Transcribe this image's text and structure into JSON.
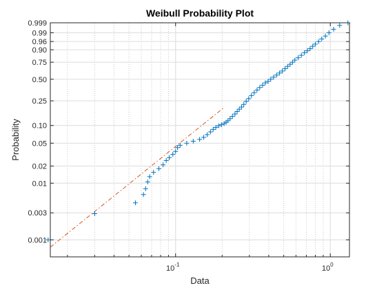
{
  "chart_data": {
    "type": "scatter",
    "title": "Weibull Probability Plot",
    "xlabel": "Data",
    "ylabel": "Probability",
    "x_scale": "log",
    "y_scale": "weibull",
    "xlim": [
      0.0155,
      1.33
    ],
    "ylim": [
      0.0005,
      0.999
    ],
    "x_major_ticks": [
      {
        "value": 0.1,
        "base": "10",
        "exp": "-1"
      },
      {
        "value": 1,
        "base": "10",
        "exp": "0"
      }
    ],
    "y_ticks": [
      {
        "value": 0.001,
        "label": "0.001"
      },
      {
        "value": 0.003,
        "label": "0.003"
      },
      {
        "value": 0.01,
        "label": "0.01"
      },
      {
        "value": 0.02,
        "label": "0.02"
      },
      {
        "value": 0.05,
        "label": "0.05"
      },
      {
        "value": 0.1,
        "label": "0.10"
      },
      {
        "value": 0.25,
        "label": "0.25"
      },
      {
        "value": 0.5,
        "label": "0.50"
      },
      {
        "value": 0.75,
        "label": "0.75"
      },
      {
        "value": 0.9,
        "label": "0.90"
      },
      {
        "value": 0.96,
        "label": "0.96"
      },
      {
        "value": 0.99,
        "label": "0.99"
      },
      {
        "value": 0.999,
        "label": "0.999"
      }
    ],
    "grid": true,
    "series": [
      {
        "marker": "+",
        "color": "#0072BD",
        "points": [
          [
            0.015,
            0.001
          ],
          [
            0.03,
            0.0029
          ],
          [
            0.055,
            0.0045
          ],
          [
            0.062,
            0.0063
          ],
          [
            0.064,
            0.008
          ],
          [
            0.066,
            0.0105
          ],
          [
            0.068,
            0.013
          ],
          [
            0.072,
            0.0155
          ],
          [
            0.078,
            0.018
          ],
          [
            0.083,
            0.021
          ],
          [
            0.087,
            0.025
          ],
          [
            0.091,
            0.028
          ],
          [
            0.096,
            0.032
          ],
          [
            0.1,
            0.036
          ],
          [
            0.103,
            0.042
          ],
          [
            0.107,
            0.046
          ],
          [
            0.118,
            0.05
          ],
          [
            0.13,
            0.054
          ],
          [
            0.143,
            0.058
          ],
          [
            0.152,
            0.063
          ],
          [
            0.16,
            0.07
          ],
          [
            0.168,
            0.078
          ],
          [
            0.175,
            0.086
          ],
          [
            0.182,
            0.093
          ],
          [
            0.19,
            0.099
          ],
          [
            0.198,
            0.103
          ],
          [
            0.206,
            0.108
          ],
          [
            0.212,
            0.113
          ],
          [
            0.218,
            0.12
          ],
          [
            0.225,
            0.13
          ],
          [
            0.233,
            0.142
          ],
          [
            0.242,
            0.155
          ],
          [
            0.25,
            0.17
          ],
          [
            0.258,
            0.185
          ],
          [
            0.267,
            0.2
          ],
          [
            0.276,
            0.22
          ],
          [
            0.286,
            0.245
          ],
          [
            0.297,
            0.27
          ],
          [
            0.309,
            0.3
          ],
          [
            0.322,
            0.33
          ],
          [
            0.336,
            0.36
          ],
          [
            0.35,
            0.39
          ],
          [
            0.365,
            0.42
          ],
          [
            0.38,
            0.45
          ],
          [
            0.396,
            0.47
          ],
          [
            0.412,
            0.5
          ],
          [
            0.43,
            0.53
          ],
          [
            0.45,
            0.56
          ],
          [
            0.47,
            0.59
          ],
          [
            0.49,
            0.62
          ],
          [
            0.51,
            0.655
          ],
          [
            0.53,
            0.69
          ],
          [
            0.55,
            0.72
          ],
          [
            0.57,
            0.75
          ],
          [
            0.59,
            0.78
          ],
          [
            0.62,
            0.81
          ],
          [
            0.65,
            0.84
          ],
          [
            0.68,
            0.87
          ],
          [
            0.71,
            0.89
          ],
          [
            0.74,
            0.91
          ],
          [
            0.77,
            0.93
          ],
          [
            0.8,
            0.945
          ],
          [
            0.84,
            0.96
          ],
          [
            0.88,
            0.972
          ],
          [
            0.93,
            0.982
          ],
          [
            0.98,
            0.99
          ],
          [
            1.05,
            0.995
          ],
          [
            1.15,
            0.998
          ],
          [
            1.3,
            0.999
          ]
        ]
      },
      {
        "type": "line",
        "style": "dash-dot",
        "color": "#D95319",
        "shape": 2.2,
        "scale": 0.41
      }
    ]
  }
}
